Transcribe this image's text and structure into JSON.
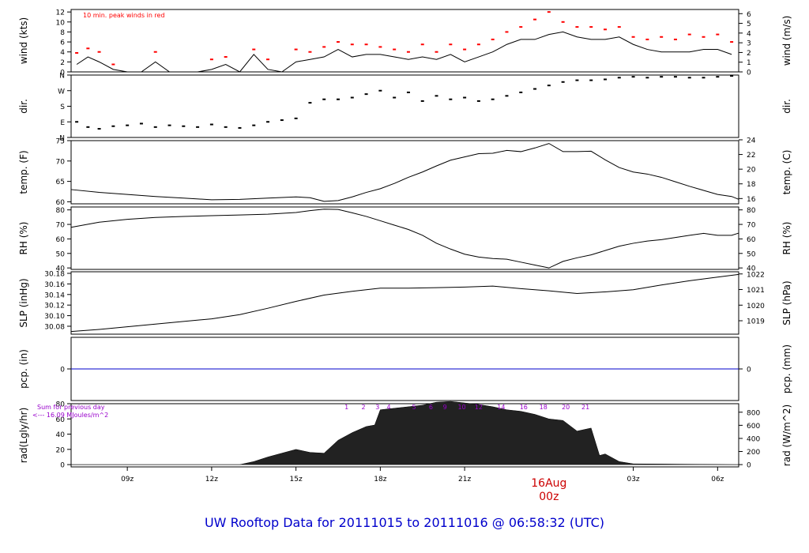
{
  "title": "UW Rooftop Data for 20111015  to  20111016 @ 06:58:32  (UTC)",
  "colors": {
    "title": "#0000cc",
    "date_marker": "#cc0000",
    "peak_wind": "#ff0000",
    "pcp_line": "#0000cc",
    "rad_annot": "#9900cc",
    "ink": "#000000"
  },
  "x_axis": {
    "ticks": [
      "09z",
      "12z",
      "15z",
      "18z",
      "21z",
      "03z",
      "06z"
    ],
    "tick_hours": [
      9,
      12,
      15,
      18,
      21,
      27,
      30
    ],
    "range_hours": [
      7.0,
      30.75
    ],
    "date_hour": 24,
    "date_label": "16Aug",
    "date_sub": "00z"
  },
  "chart_data": [
    {
      "type": "line",
      "id": "wind",
      "ylabel": "wind (kts)",
      "ylabel_right": "wind (m/s)",
      "ylim": [
        0,
        12.5
      ],
      "yticks": [
        0,
        2,
        4,
        6,
        8,
        10,
        12
      ],
      "right_ylim": [
        0,
        6.43
      ],
      "right_yticks": [
        0,
        1,
        2,
        3,
        4,
        5,
        6
      ],
      "annotation": "10 min. peak winds in red",
      "hours": [
        7.2,
        7.6,
        8.0,
        8.5,
        9.0,
        9.5,
        10.0,
        10.5,
        11.0,
        11.5,
        12.0,
        12.5,
        13.0,
        13.5,
        14.0,
        14.5,
        15.0,
        15.5,
        16.0,
        16.5,
        17.0,
        17.5,
        18.0,
        18.5,
        19.0,
        19.5,
        20.0,
        20.5,
        21.0,
        21.5,
        22.0,
        22.5,
        23.0,
        23.5,
        24.0,
        24.5,
        25.0,
        25.5,
        26.0,
        26.5,
        27.0,
        27.5,
        28.0,
        28.5,
        29.0,
        29.5,
        30.0,
        30.5
      ],
      "values": [
        1.5,
        3.0,
        2.0,
        0.5,
        0.0,
        0.0,
        2.0,
        0.0,
        0.0,
        0.0,
        0.5,
        1.5,
        0.0,
        3.5,
        0.5,
        0.0,
        2.0,
        2.5,
        3.0,
        4.5,
        3.0,
        3.5,
        3.5,
        3.0,
        2.5,
        3.0,
        2.5,
        3.5,
        2.0,
        3.0,
        4.0,
        5.5,
        6.5,
        6.5,
        7.5,
        8.0,
        7.0,
        6.5,
        6.5,
        7.0,
        5.5,
        4.5,
        4.0,
        4.0,
        4.0,
        4.5,
        4.5,
        3.5
      ],
      "peaks": [
        3.8,
        4.7,
        4.0,
        1.5,
        0.0,
        0.0,
        4.0,
        0.0,
        0.0,
        0.0,
        2.5,
        3.0,
        0.0,
        4.5,
        2.5,
        0.0,
        4.5,
        4.0,
        5.0,
        6.0,
        5.5,
        5.5,
        5.0,
        4.5,
        4.0,
        5.5,
        4.0,
        5.5,
        4.5,
        5.5,
        6.5,
        8.0,
        9.0,
        10.5,
        12.0,
        10.0,
        9.0,
        9.0,
        8.5,
        9.0,
        7.0,
        6.5,
        7.0,
        6.5,
        7.5,
        7.0,
        7.5,
        6.0
      ]
    },
    {
      "type": "scatter",
      "id": "dir",
      "ylabel": "dir.",
      "ylabel_right": "dir.",
      "ylim": [
        0,
        360
      ],
      "yticks": [
        0,
        90,
        180,
        270,
        360
      ],
      "ytick_labels": [
        "N",
        "E",
        "S",
        "W",
        "N"
      ],
      "hours": [
        7.2,
        7.6,
        8.0,
        8.5,
        9.0,
        9.5,
        10.0,
        10.5,
        11.0,
        11.5,
        12.0,
        12.5,
        13.0,
        13.5,
        14.0,
        14.5,
        15.0,
        15.5,
        16.0,
        16.5,
        17.0,
        17.5,
        18.0,
        18.5,
        19.0,
        19.5,
        20.0,
        20.5,
        21.0,
        21.5,
        22.0,
        22.5,
        23.0,
        23.5,
        24.0,
        24.5,
        25.0,
        25.5,
        26.0,
        26.5,
        27.0,
        27.5,
        28.0,
        28.5,
        29.0,
        29.5,
        30.0,
        30.5
      ],
      "values": [
        90,
        60,
        50,
        65,
        70,
        80,
        60,
        70,
        65,
        60,
        75,
        60,
        55,
        70,
        90,
        100,
        110,
        200,
        220,
        220,
        230,
        250,
        270,
        230,
        260,
        210,
        240,
        220,
        230,
        210,
        220,
        240,
        260,
        280,
        300,
        320,
        330,
        330,
        335,
        345,
        350,
        345,
        350,
        350,
        345,
        345,
        350,
        355
      ]
    },
    {
      "type": "line",
      "id": "temp",
      "ylabel": "temp. (F)",
      "ylabel_right": "temp. (C)",
      "ylim": [
        59.5,
        75
      ],
      "yticks": [
        60,
        65,
        70,
        75
      ],
      "right_ylim": [
        15.28,
        23.89
      ],
      "right_yticks": [
        16,
        18,
        20,
        22,
        24
      ],
      "hours": [
        7.0,
        8.0,
        9.0,
        10.0,
        11.0,
        12.0,
        13.0,
        14.0,
        15.0,
        15.5,
        16.0,
        16.5,
        17.0,
        17.5,
        18.0,
        18.5,
        19.0,
        19.5,
        20.0,
        20.5,
        21.0,
        21.5,
        22.0,
        22.5,
        23.0,
        23.5,
        24.0,
        24.5,
        25.0,
        25.5,
        26.0,
        26.5,
        27.0,
        27.5,
        28.0,
        28.5,
        29.0,
        29.5,
        30.0,
        30.5,
        30.75
      ],
      "values": [
        63.0,
        62.3,
        61.8,
        61.3,
        60.9,
        60.5,
        60.6,
        60.9,
        61.2,
        61.0,
        60.1,
        60.3,
        61.2,
        62.3,
        63.2,
        64.5,
        66.0,
        67.3,
        68.8,
        70.2,
        71.0,
        71.8,
        71.9,
        72.6,
        72.3,
        73.2,
        74.3,
        72.3,
        72.3,
        72.4,
        70.3,
        68.4,
        67.3,
        66.8,
        66.0,
        64.9,
        63.8,
        62.8,
        61.8,
        61.3,
        60.6
      ]
    },
    {
      "type": "line",
      "id": "rh",
      "ylabel": "RH (%)",
      "ylabel_right": "RH (%)",
      "ylim": [
        39,
        82
      ],
      "yticks": [
        40,
        50,
        60,
        70,
        80
      ],
      "right_ylim": [
        39,
        82
      ],
      "right_yticks": [
        40,
        50,
        60,
        70,
        80
      ],
      "hours": [
        7.0,
        8.0,
        9.0,
        10.0,
        11.0,
        12.0,
        13.0,
        14.0,
        15.0,
        15.5,
        16.0,
        16.5,
        17.0,
        17.5,
        18.0,
        18.5,
        19.0,
        19.5,
        20.0,
        20.5,
        21.0,
        21.5,
        22.0,
        22.5,
        23.0,
        23.5,
        24.0,
        24.5,
        25.0,
        25.5,
        26.0,
        26.5,
        27.0,
        27.5,
        28.0,
        28.5,
        29.0,
        29.5,
        30.0,
        30.5,
        30.75
      ],
      "values": [
        68.0,
        71.5,
        73.5,
        74.8,
        75.5,
        76.0,
        76.5,
        77.0,
        78.2,
        79.5,
        80.5,
        80.3,
        78.0,
        75.5,
        72.5,
        69.5,
        66.5,
        62.5,
        57.0,
        53.0,
        49.5,
        47.5,
        46.5,
        46.0,
        44.0,
        42.0,
        40.0,
        44.5,
        47.0,
        49.0,
        52.0,
        55.0,
        57.0,
        58.5,
        59.5,
        61.0,
        62.5,
        63.8,
        62.5,
        62.5,
        64.0
      ]
    },
    {
      "type": "line",
      "id": "slp",
      "ylabel": "SLP (inHg)",
      "ylabel_right": "SLP (hPa)",
      "ylim": [
        30.065,
        30.183
      ],
      "yticks": [
        30.08,
        30.1,
        30.12,
        30.14,
        30.16,
        30.18
      ],
      "ytick_labels": [
        "30.08",
        "30.10",
        "30.12",
        "30.14",
        "30.16",
        "30.18"
      ],
      "right_ylim": [
        1018.14,
        1022.14
      ],
      "right_yticks": [
        1019,
        1020,
        1021,
        1022
      ],
      "hours": [
        7.0,
        8.0,
        9.0,
        10.0,
        11.0,
        12.0,
        13.0,
        14.0,
        15.0,
        16.0,
        17.0,
        18.0,
        19.0,
        20.0,
        21.0,
        22.0,
        23.0,
        24.0,
        25.0,
        26.0,
        27.0,
        28.0,
        29.0,
        30.0,
        30.75
      ],
      "values": [
        30.07,
        30.074,
        30.079,
        30.084,
        30.089,
        30.094,
        30.102,
        30.114,
        30.127,
        30.139,
        30.146,
        30.152,
        30.152,
        30.153,
        30.154,
        30.156,
        30.151,
        30.147,
        30.142,
        30.145,
        30.149,
        30.158,
        30.166,
        30.173,
        30.178
      ]
    },
    {
      "type": "line",
      "id": "pcp",
      "ylabel": "pcp. (in)",
      "ylabel_right": "pcp. (mm)",
      "ylim": [
        -0.5,
        0.5
      ],
      "yticks": [
        0
      ],
      "right_yticks_labels": [
        "0"
      ],
      "hours": [
        7.0,
        30.75
      ],
      "values": [
        0,
        0
      ]
    },
    {
      "type": "area",
      "id": "rad",
      "ylabel": "rad(Lgly/hr)",
      "ylabel_right": "rad (W/m^2)",
      "ylim": [
        -3,
        80
      ],
      "yticks": [
        0,
        20,
        40,
        60,
        80
      ],
      "right_ylim": [
        -35,
        930
      ],
      "right_yticks": [
        0,
        200,
        400,
        600,
        800
      ],
      "annotation_1": "Sum for previous day",
      "annotation_2": "<--- 16.09 MJoules/m^2",
      "hour_labels": [
        "1",
        "2",
        "3",
        "4",
        "5",
        "6",
        "9",
        "10",
        "12",
        "14",
        "16",
        "18",
        "20",
        "21"
      ],
      "hour_label_positions": [
        16.8,
        17.4,
        17.9,
        18.3,
        19.2,
        19.8,
        20.3,
        20.9,
        21.5,
        22.3,
        23.1,
        23.8,
        24.6,
        25.3
      ],
      "hours": [
        7.0,
        13.0,
        13.5,
        14.0,
        14.5,
        15.0,
        15.5,
        16.0,
        16.5,
        17.0,
        17.5,
        17.8,
        18.0,
        18.5,
        19.0,
        19.5,
        20.0,
        20.5,
        21.0,
        21.5,
        22.0,
        22.5,
        23.0,
        23.5,
        24.0,
        24.5,
        25.0,
        25.5,
        25.8,
        26.0,
        26.5,
        27.0,
        30.75
      ],
      "values": [
        0,
        0,
        4,
        10,
        15,
        20,
        16,
        15,
        32,
        42,
        50,
        52,
        72,
        74,
        76,
        78,
        82,
        83,
        81,
        79,
        76,
        72,
        70,
        66,
        60,
        58,
        44,
        48,
        12,
        14,
        4,
        1,
        0
      ]
    }
  ]
}
